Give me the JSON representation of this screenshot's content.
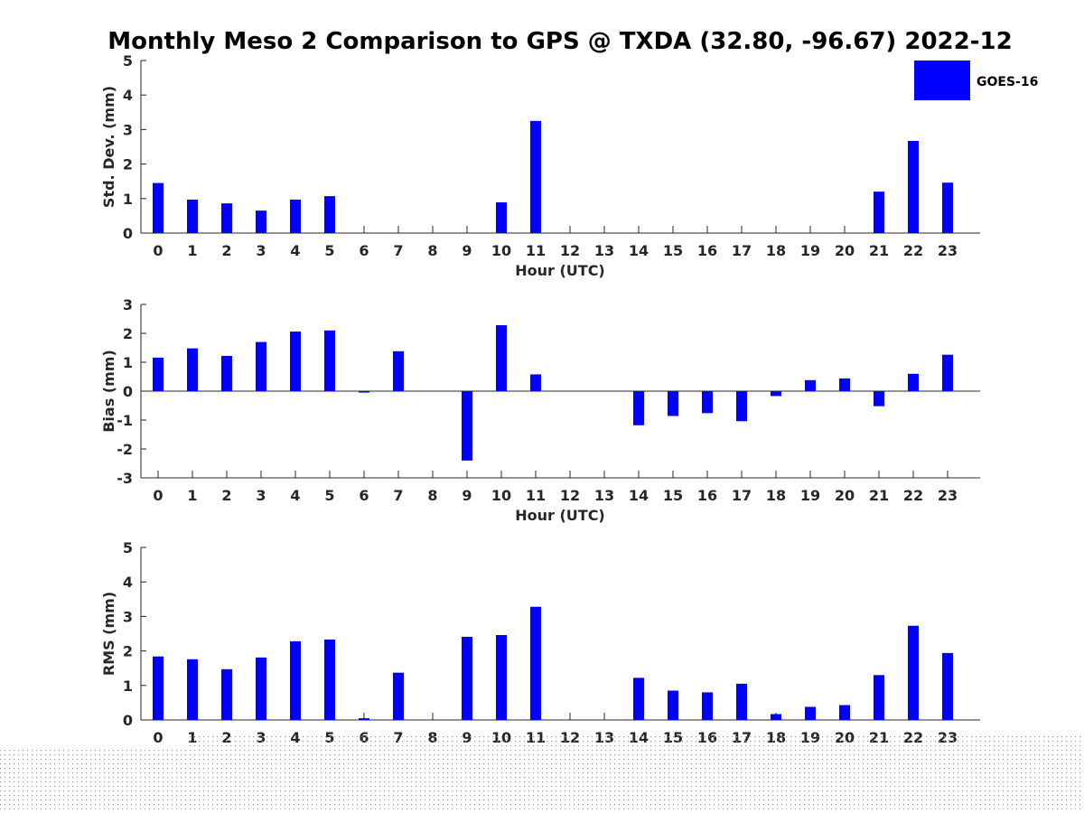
{
  "page": {
    "title": "Monthly Meso 2 Comparison to GPS @ TXDA (32.80, -96.67) 2022-12"
  },
  "legend": {
    "label": "GOES-16",
    "color": "#0000ff"
  },
  "chart_data": [
    {
      "type": "bar",
      "id": "std",
      "ylabel": "Std. Dev. (mm)",
      "xlabel": "Hour (UTC)",
      "ylim": [
        0,
        5
      ],
      "yticks": [
        0,
        1,
        2,
        3,
        4,
        5
      ],
      "categories": [
        "0",
        "1",
        "2",
        "3",
        "4",
        "5",
        "6",
        "7",
        "8",
        "9",
        "10",
        "11",
        "12",
        "13",
        "14",
        "15",
        "16",
        "17",
        "18",
        "19",
        "20",
        "21",
        "22",
        "23"
      ],
      "series": [
        {
          "name": "GOES-16",
          "values": [
            1.45,
            0.97,
            0.86,
            0.65,
            0.97,
            1.07,
            0,
            0,
            0,
            0,
            0.89,
            3.25,
            0,
            0,
            0,
            0,
            0,
            0,
            0,
            0,
            0,
            1.2,
            2.67,
            1.46
          ]
        }
      ]
    },
    {
      "type": "bar",
      "id": "bias",
      "ylabel": "Bias (mm)",
      "xlabel": "Hour (UTC)",
      "ylim": [
        -3,
        3
      ],
      "yticks": [
        -3,
        -2,
        -1,
        0,
        1,
        2,
        3
      ],
      "categories": [
        "0",
        "1",
        "2",
        "3",
        "4",
        "5",
        "6",
        "7",
        "8",
        "9",
        "10",
        "11",
        "12",
        "13",
        "14",
        "15",
        "16",
        "17",
        "18",
        "19",
        "20",
        "21",
        "22",
        "23"
      ],
      "series": [
        {
          "name": "GOES-16",
          "values": [
            1.16,
            1.48,
            1.22,
            1.7,
            2.06,
            2.1,
            -0.05,
            1.38,
            0,
            -2.4,
            2.28,
            0.58,
            0,
            0,
            -1.18,
            -0.86,
            -0.76,
            -1.04,
            -0.17,
            0.38,
            0.44,
            -0.52,
            0.6,
            1.26
          ]
        }
      ]
    },
    {
      "type": "bar",
      "id": "rms",
      "ylabel": "RMS (mm)",
      "xlabel": "",
      "ylim": [
        0,
        5
      ],
      "yticks": [
        0,
        1,
        2,
        3,
        4,
        5
      ],
      "categories": [
        "0",
        "1",
        "2",
        "3",
        "4",
        "5",
        "6",
        "7",
        "8",
        "9",
        "10",
        "11",
        "12",
        "13",
        "14",
        "15",
        "16",
        "17",
        "18",
        "19",
        "20",
        "21",
        "22",
        "23"
      ],
      "series": [
        {
          "name": "GOES-16",
          "values": [
            1.84,
            1.76,
            1.47,
            1.81,
            2.28,
            2.33,
            0.05,
            1.37,
            0,
            2.41,
            2.46,
            3.28,
            0,
            0,
            1.22,
            0.85,
            0.8,
            1.05,
            0.17,
            0.38,
            0.43,
            1.3,
            2.73,
            1.94
          ]
        }
      ]
    }
  ]
}
